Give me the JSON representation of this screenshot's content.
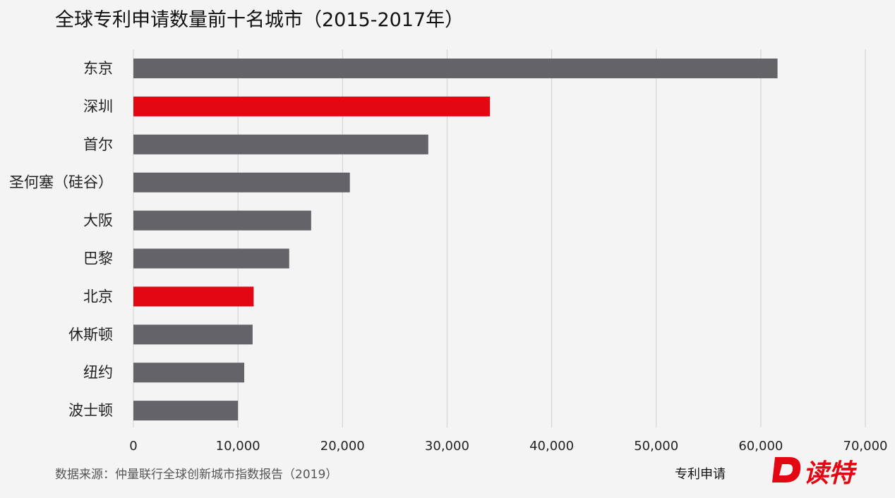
{
  "title": "全球专利申请数量前十名城市（2015-2017年）",
  "source": "数据来源：仲量联行全球创新城市指数报告（2019）",
  "logo": {
    "text": "读特",
    "mark": "D"
  },
  "colors": {
    "default_bar": "#636368",
    "highlight_bar": "#e30613",
    "grid": "#cfcfcf",
    "background": "#f4f4f4"
  },
  "chart_data": {
    "type": "bar",
    "orientation": "horizontal",
    "categories": [
      "东京",
      "深圳",
      "首尔",
      "圣何塞（硅谷）",
      "大阪",
      "巴黎",
      "北京",
      "休斯顿",
      "纽约",
      "波士顿"
    ],
    "values": [
      61600,
      34100,
      28200,
      20700,
      17000,
      14900,
      11500,
      11400,
      10600,
      10000
    ],
    "highlighted": [
      "深圳",
      "北京"
    ],
    "xlabel": "专利申请",
    "xlim": [
      0,
      70000
    ],
    "xticks": [
      0,
      10000,
      20000,
      30000,
      40000,
      50000,
      60000,
      70000
    ],
    "xtick_labels": [
      "0",
      "10,000",
      "20,000",
      "30,000",
      "40,000",
      "50,000",
      "60,000",
      "70,000"
    ],
    "grid": "vertical",
    "legend": "none"
  }
}
